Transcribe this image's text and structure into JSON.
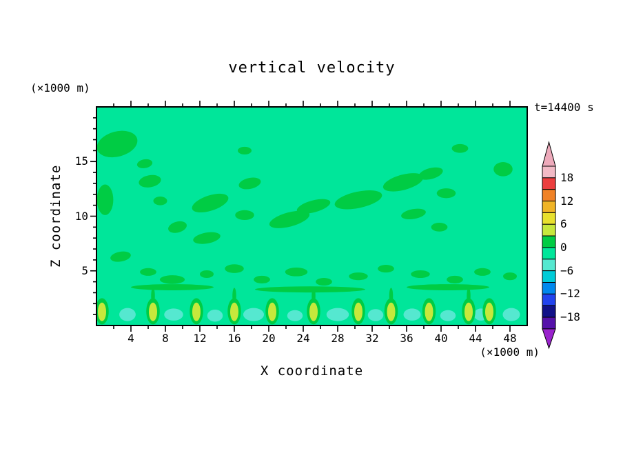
{
  "title": "vertical velocity",
  "time_label": "t=14400 s",
  "x_axis": {
    "label": "X coordinate",
    "units": "(×1000 m)",
    "range": [
      0,
      50
    ],
    "major_ticks": [
      4,
      8,
      12,
      16,
      20,
      24,
      28,
      32,
      36,
      40,
      44,
      48
    ],
    "minor_tick_step": 2
  },
  "y_axis": {
    "label": "Z coordinate",
    "units": "(×1000 m)",
    "range": [
      0,
      20
    ],
    "major_ticks": [
      5,
      10,
      15
    ],
    "minor_tick_step": 1
  },
  "colorbar": {
    "labels": [
      18,
      12,
      6,
      0,
      -6,
      -12,
      -18
    ],
    "level_step": 3,
    "top_value": 21,
    "bottom_value": -21,
    "segments": [
      {
        "from": 18,
        "to": 21,
        "color": "#f2bac6"
      },
      {
        "from": 15,
        "to": 18,
        "color": "#ec3e3e"
      },
      {
        "from": 12,
        "to": 15,
        "color": "#f08226"
      },
      {
        "from": 9,
        "to": 12,
        "color": "#f0b426"
      },
      {
        "from": 6,
        "to": 9,
        "color": "#e8e02e"
      },
      {
        "from": 3,
        "to": 6,
        "color": "#c6e83c"
      },
      {
        "from": 0,
        "to": 3,
        "color": "#00cc44"
      },
      {
        "from": -3,
        "to": 0,
        "color": "#00e69a"
      },
      {
        "from": -6,
        "to": -3,
        "color": "#55e8d0"
      },
      {
        "from": -9,
        "to": -6,
        "color": "#00ccd8"
      },
      {
        "from": -12,
        "to": -9,
        "color": "#0088ee"
      },
      {
        "from": -15,
        "to": -12,
        "color": "#2244ee"
      },
      {
        "from": -18,
        "to": -15,
        "color": "#111188"
      },
      {
        "from": -21,
        "to": -18,
        "color": "#5511aa"
      }
    ],
    "arrow_top_color": "#eeaabb",
    "arrow_bottom_color": "#9922cc"
  },
  "chart_data": {
    "type": "heatmap",
    "title": "vertical velocity",
    "xlabel": "X coordinate (×1000 m)",
    "ylabel": "Z coordinate (×1000 m)",
    "x_range": [
      0,
      50
    ],
    "z_range": [
      0,
      20
    ],
    "time_s": 14400,
    "contour_interval": 3,
    "background_color": "#00e69a",
    "background_level": [
      -3,
      0
    ],
    "colors": {
      "green": "#00cc44",
      "yellow": "#c6e83c",
      "cyan": "#55e8d0"
    },
    "feature_format": "[x, z, rx, rz, rot_deg] in axis units (×1000 m)",
    "features": {
      "green_blobs": [
        [
          2.4,
          16.6,
          2.4,
          1.15,
          -15
        ],
        [
          1.0,
          11.5,
          0.95,
          1.4,
          0
        ],
        [
          5.6,
          14.8,
          0.9,
          0.4,
          -10
        ],
        [
          6.2,
          13.2,
          1.3,
          0.55,
          -10
        ],
        [
          7.4,
          11.4,
          0.8,
          0.4,
          0
        ],
        [
          13.2,
          11.2,
          2.2,
          0.7,
          -18
        ],
        [
          9.4,
          9.0,
          1.1,
          0.5,
          -15
        ],
        [
          12.8,
          8.0,
          1.6,
          0.5,
          -10
        ],
        [
          17.2,
          10.1,
          1.1,
          0.45,
          0
        ],
        [
          17.8,
          13.0,
          1.3,
          0.5,
          -12
        ],
        [
          17.2,
          16.0,
          0.8,
          0.35,
          0
        ],
        [
          22.4,
          9.7,
          2.4,
          0.65,
          -15
        ],
        [
          25.2,
          10.9,
          2.0,
          0.55,
          -15
        ],
        [
          30.4,
          11.5,
          2.8,
          0.75,
          -12
        ],
        [
          35.6,
          13.1,
          2.4,
          0.7,
          -15
        ],
        [
          38.8,
          13.9,
          1.45,
          0.5,
          -15
        ],
        [
          40.6,
          12.1,
          1.1,
          0.45,
          0
        ],
        [
          36.8,
          10.2,
          1.45,
          0.45,
          -10
        ],
        [
          39.8,
          9.0,
          0.95,
          0.4,
          0
        ],
        [
          47.2,
          14.3,
          1.1,
          0.65,
          0
        ],
        [
          42.2,
          16.2,
          0.95,
          0.4,
          0
        ],
        [
          2.8,
          6.3,
          1.2,
          0.45,
          -10
        ],
        [
          6.0,
          4.9,
          0.95,
          0.35,
          0
        ],
        [
          8.8,
          4.2,
          1.45,
          0.4,
          0
        ],
        [
          12.8,
          4.7,
          0.8,
          0.35,
          0
        ],
        [
          16.0,
          5.2,
          1.1,
          0.4,
          0
        ],
        [
          19.2,
          4.2,
          0.95,
          0.35,
          0
        ],
        [
          23.2,
          4.9,
          1.3,
          0.4,
          0
        ],
        [
          26.4,
          4.0,
          0.95,
          0.35,
          0
        ],
        [
          30.4,
          4.5,
          1.1,
          0.35,
          0
        ],
        [
          33.6,
          5.2,
          0.95,
          0.35,
          0
        ],
        [
          37.6,
          4.7,
          1.1,
          0.35,
          0
        ],
        [
          41.6,
          4.2,
          0.95,
          0.35,
          0
        ],
        [
          44.8,
          4.9,
          0.95,
          0.35,
          0
        ],
        [
          48.0,
          4.5,
          0.8,
          0.35,
          0
        ],
        [
          8.8,
          3.5,
          4.8,
          0.28,
          0
        ],
        [
          24.8,
          3.3,
          6.4,
          0.28,
          0
        ],
        [
          40.8,
          3.5,
          4.8,
          0.28,
          0
        ],
        [
          0.64,
          1.3,
          0.78,
          1.2,
          0
        ],
        [
          6.56,
          1.3,
          0.78,
          1.2,
          0
        ],
        [
          11.6,
          1.3,
          0.78,
          1.2,
          0
        ],
        [
          16.0,
          1.3,
          0.78,
          1.2,
          0
        ],
        [
          20.4,
          1.3,
          0.78,
          1.2,
          0
        ],
        [
          25.2,
          1.3,
          0.78,
          1.2,
          0
        ],
        [
          30.4,
          1.3,
          0.78,
          1.2,
          0
        ],
        [
          34.2,
          1.3,
          0.78,
          1.2,
          0
        ],
        [
          38.6,
          1.3,
          0.78,
          1.2,
          0
        ],
        [
          43.2,
          1.3,
          0.78,
          1.2,
          0
        ],
        [
          45.6,
          1.3,
          0.78,
          1.2,
          0
        ],
        [
          6.56,
          2.7,
          0.22,
          0.75,
          0
        ],
        [
          16.0,
          2.7,
          0.22,
          0.75,
          0
        ],
        [
          25.2,
          2.7,
          0.22,
          0.75,
          0
        ],
        [
          34.2,
          2.7,
          0.22,
          0.75,
          0
        ],
        [
          43.2,
          2.7,
          0.22,
          0.75,
          0
        ]
      ],
      "yellow_cells": [
        [
          0.64,
          1.25,
          0.48,
          0.85,
          0
        ],
        [
          6.56,
          1.25,
          0.48,
          0.85,
          0
        ],
        [
          11.6,
          1.25,
          0.48,
          0.85,
          0
        ],
        [
          16.0,
          1.25,
          0.48,
          0.85,
          0
        ],
        [
          20.4,
          1.25,
          0.48,
          0.85,
          0
        ],
        [
          25.2,
          1.25,
          0.48,
          0.85,
          0
        ],
        [
          30.4,
          1.25,
          0.48,
          0.85,
          0
        ],
        [
          34.2,
          1.25,
          0.48,
          0.85,
          0
        ],
        [
          38.6,
          1.25,
          0.48,
          0.85,
          0
        ],
        [
          43.2,
          1.25,
          0.48,
          0.85,
          0
        ],
        [
          45.6,
          1.25,
          0.48,
          0.85,
          0
        ]
      ],
      "cyan_cells": [
        [
          3.6,
          1.0,
          0.95,
          0.6,
          0
        ],
        [
          8.96,
          1.0,
          1.1,
          0.55,
          0
        ],
        [
          13.76,
          0.9,
          0.9,
          0.55,
          0
        ],
        [
          18.24,
          1.0,
          1.2,
          0.6,
          0
        ],
        [
          23.04,
          0.9,
          0.9,
          0.5,
          0
        ],
        [
          28.0,
          1.0,
          1.3,
          0.6,
          0
        ],
        [
          32.4,
          0.95,
          0.9,
          0.55,
          0
        ],
        [
          36.64,
          1.0,
          1.0,
          0.55,
          0
        ],
        [
          40.8,
          0.9,
          0.9,
          0.5,
          0
        ],
        [
          44.64,
          1.0,
          0.85,
          0.55,
          0
        ],
        [
          48.16,
          1.0,
          1.0,
          0.6,
          0
        ]
      ]
    }
  }
}
